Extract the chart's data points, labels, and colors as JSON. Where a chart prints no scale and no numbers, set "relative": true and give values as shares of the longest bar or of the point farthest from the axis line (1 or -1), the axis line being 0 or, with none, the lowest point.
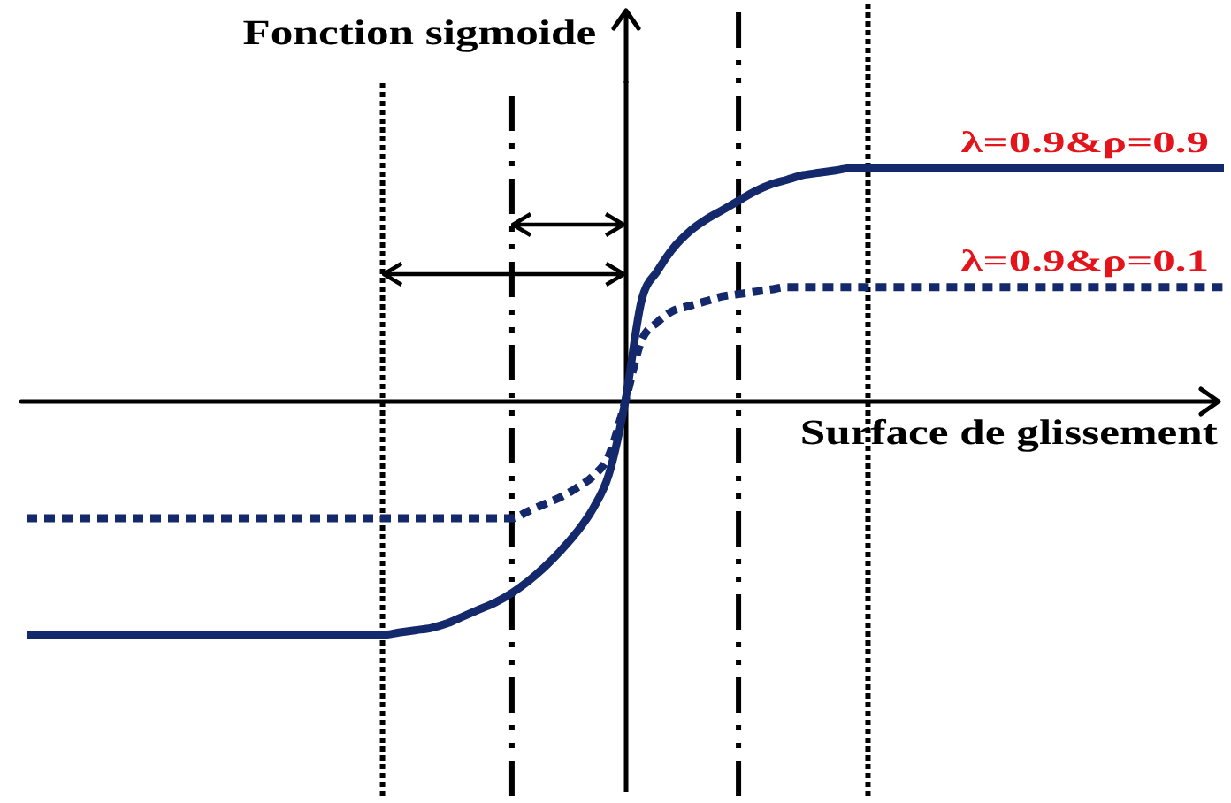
{
  "chart_data": {
    "type": "line",
    "relative": true,
    "grid": "x",
    "xlabel": "Surface de glissement",
    "ylabel": "Fonction sigmoide",
    "categories": [
      null,
      null,
      null,
      null,
      null,
      null,
      null,
      null,
      null,
      null,
      null,
      null,
      null,
      null,
      null,
      null,
      null,
      null,
      null,
      null,
      null,
      null,
      null,
      null,
      null,
      null,
      null,
      null,
      null,
      null,
      null,
      null,
      null,
      null,
      null,
      null,
      null,
      null,
      null,
      null,
      null,
      null,
      null,
      null,
      null,
      null,
      null,
      null,
      null,
      null,
      null,
      null,
      null,
      null,
      null,
      null,
      null,
      null,
      null,
      null,
      null,
      null,
      null,
      null,
      null,
      null,
      null,
      null,
      null,
      null,
      null,
      null,
      null,
      null,
      null
    ],
    "series": [
      {
        "name": "λ=0.9&ρ=0.9",
        "color": "#14296b",
        "line_style": "solid",
        "values": [
          -1,
          -1,
          -1,
          -1,
          -1,
          -1,
          -1,
          -1,
          -1,
          -1,
          -1,
          -1,
          -1,
          -1,
          -1,
          -1,
          -1,
          -1,
          -1,
          -1,
          -1,
          -1,
          -1,
          -0.99,
          -0.98,
          -0.97,
          -0.95,
          -0.92,
          -0.89,
          -0.86,
          -0.82,
          -0.77,
          -0.71,
          -0.64,
          -0.56,
          -0.46,
          -0.31,
          0,
          0.43,
          0.56,
          0.66,
          0.73,
          0.78,
          0.82,
          0.86,
          0.9,
          0.93,
          0.95,
          0.97,
          0.98,
          0.99,
          1,
          1,
          1,
          1,
          1,
          1,
          1,
          1,
          1,
          1,
          1,
          1,
          1,
          1,
          1,
          1,
          1,
          1,
          1,
          1,
          1,
          1,
          1,
          1
        ]
      },
      {
        "name": "λ=0.9&ρ=0.1",
        "color": "#14296b",
        "line_style": "dotted",
        "values": [
          -0.5,
          -0.5,
          -0.5,
          -0.5,
          -0.5,
          -0.5,
          -0.5,
          -0.5,
          -0.5,
          -0.5,
          -0.5,
          -0.5,
          -0.5,
          -0.5,
          -0.5,
          -0.5,
          -0.5,
          -0.5,
          -0.5,
          -0.5,
          -0.5,
          -0.5,
          -0.5,
          -0.5,
          -0.5,
          -0.5,
          -0.5,
          -0.5,
          -0.5,
          -0.5,
          -0.5,
          -0.47,
          -0.44,
          -0.41,
          -0.37,
          -0.32,
          -0.23,
          0,
          0.26,
          0.34,
          0.39,
          0.41,
          0.43,
          0.45,
          0.46,
          0.47,
          0.48,
          0.49,
          0.49,
          0.49,
          0.49,
          0.49,
          0.49,
          0.49,
          0.49,
          0.49,
          0.49,
          0.49,
          0.49,
          0.49,
          0.49,
          0.49,
          0.49,
          0.49,
          0.49,
          0.49,
          0.49,
          0.49,
          0.49,
          0.49,
          0.49,
          0.49,
          0.49,
          0.49,
          0.49
        ]
      }
    ]
  }
}
